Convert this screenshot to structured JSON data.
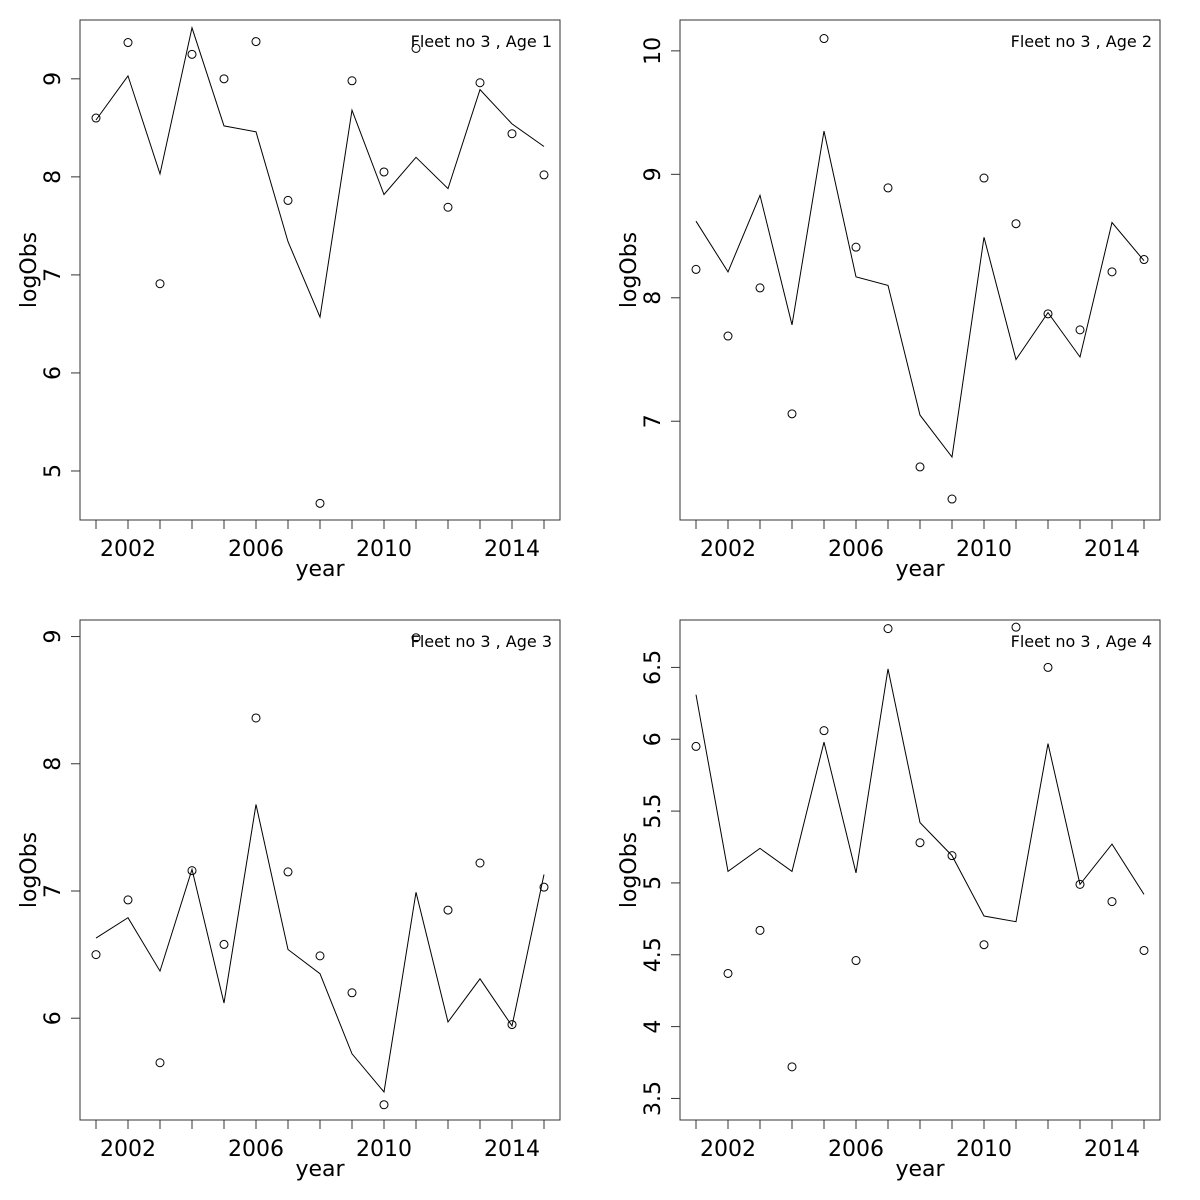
{
  "chart_data": [
    {
      "type": "line",
      "title": "Fleet no 3 , Age 1",
      "xlabel": "year",
      "ylabel": "logObs",
      "xlim": [
        2000.5,
        2015.5
      ],
      "ylim": [
        4.5,
        9.6
      ],
      "xticks": [
        2002,
        2006,
        2010,
        2014
      ],
      "yticks": [
        5,
        6,
        7,
        8,
        9
      ],
      "x": [
        2001,
        2002,
        2003,
        2004,
        2005,
        2006,
        2007,
        2008,
        2009,
        2010,
        2011,
        2012,
        2013,
        2014,
        2015
      ],
      "series": [
        {
          "values": [
            8.58,
            9.03,
            8.03,
            9.52,
            8.52,
            8.46,
            7.34,
            6.57,
            8.68,
            7.82,
            8.2,
            7.88,
            8.89,
            8.54,
            8.31
          ]
        },
        {
          "values": [
            8.6,
            9.37,
            6.91,
            9.25,
            9.0,
            9.38,
            7.76,
            4.67,
            8.98,
            8.05,
            9.31,
            7.69,
            8.96,
            8.44,
            8.02
          ]
        }
      ]
    },
    {
      "type": "line",
      "title": "Fleet no 3 , Age 2",
      "xlabel": "year",
      "ylabel": "logObs",
      "xlim": [
        2000.5,
        2015.5
      ],
      "ylim": [
        6.2,
        10.25
      ],
      "xticks": [
        2002,
        2006,
        2010,
        2014
      ],
      "yticks": [
        7,
        8,
        9,
        10
      ],
      "x": [
        2001,
        2002,
        2003,
        2004,
        2005,
        2006,
        2007,
        2008,
        2009,
        2010,
        2011,
        2012,
        2013,
        2014,
        2015
      ],
      "series": [
        {
          "values": [
            8.62,
            8.21,
            8.83,
            7.78,
            9.35,
            8.17,
            8.1,
            7.05,
            6.71,
            8.49,
            7.5,
            7.88,
            7.52,
            8.61,
            8.3
          ]
        },
        {
          "values": [
            8.23,
            7.69,
            8.08,
            7.06,
            10.1,
            8.41,
            8.89,
            6.63,
            6.37,
            8.97,
            8.6,
            7.87,
            7.74,
            8.21,
            8.31
          ]
        }
      ]
    },
    {
      "type": "line",
      "title": "Fleet no 3 , Age 3",
      "xlabel": "year",
      "ylabel": "logObs",
      "xlim": [
        2000.5,
        2015.5
      ],
      "ylim": [
        5.2,
        9.13
      ],
      "xticks": [
        2002,
        2006,
        2010,
        2014
      ],
      "yticks": [
        6,
        7,
        8,
        9
      ],
      "x": [
        2001,
        2002,
        2003,
        2004,
        2005,
        2006,
        2007,
        2008,
        2009,
        2010,
        2011,
        2012,
        2013,
        2014,
        2015
      ],
      "series": [
        {
          "values": [
            6.63,
            6.79,
            6.37,
            7.17,
            6.12,
            7.68,
            6.54,
            6.35,
            5.72,
            5.42,
            6.99,
            5.97,
            6.31,
            5.94,
            7.13
          ]
        },
        {
          "values": [
            6.5,
            6.93,
            5.65,
            7.16,
            6.58,
            8.36,
            7.15,
            6.49,
            6.2,
            5.32,
            8.99,
            6.85,
            7.22,
            5.95,
            7.03
          ]
        }
      ]
    },
    {
      "type": "line",
      "title": "Fleet no 3 , Age 4",
      "xlabel": "year",
      "ylabel": "logObs",
      "xlim": [
        2000.5,
        2015.5
      ],
      "ylim": [
        3.35,
        6.83
      ],
      "xticks": [
        2002,
        2006,
        2010,
        2014
      ],
      "yticks": [
        3.5,
        4.0,
        4.5,
        5.0,
        5.5,
        6.0,
        6.5
      ],
      "x": [
        2001,
        2002,
        2003,
        2004,
        2005,
        2006,
        2007,
        2008,
        2009,
        2010,
        2011,
        2012,
        2013,
        2014,
        2015
      ],
      "series": [
        {
          "values": [
            6.31,
            5.08,
            5.24,
            5.08,
            5.98,
            5.07,
            6.49,
            5.42,
            5.19,
            4.77,
            4.73,
            5.97,
            4.99,
            5.27,
            4.92
          ]
        },
        {
          "values": [
            5.95,
            4.37,
            4.67,
            3.72,
            6.06,
            4.46,
            6.77,
            5.28,
            5.19,
            4.57,
            6.78,
            6.5,
            4.99,
            4.87,
            4.53
          ]
        }
      ]
    }
  ]
}
